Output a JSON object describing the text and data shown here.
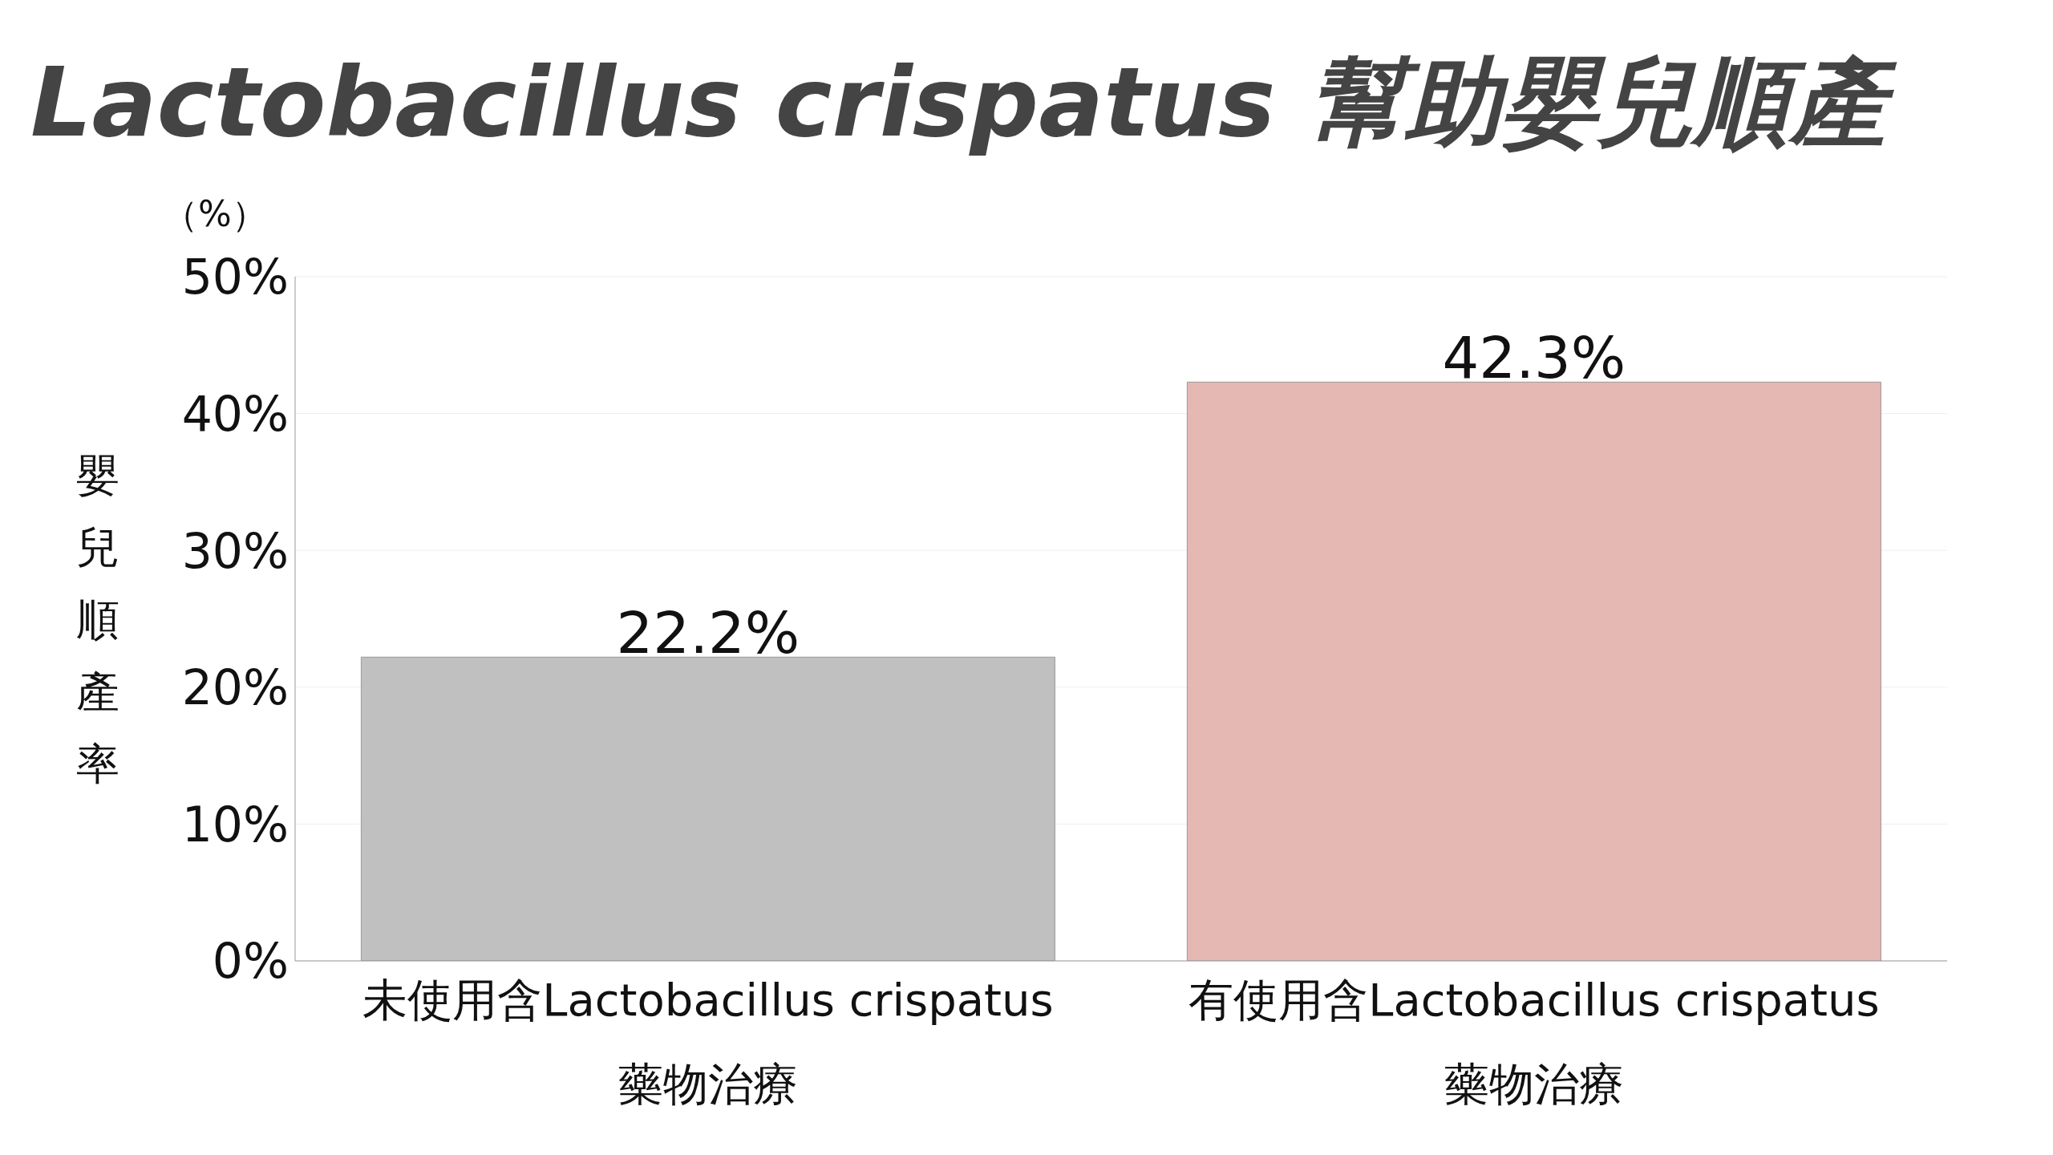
{
  "chart_data": {
    "type": "bar",
    "title": "Lactobacillus crispatus 幫助嬰兒順產",
    "ylabel": "嬰兒順產率",
    "annotations": [
      "（%）"
    ],
    "categories": [
      "未使用含Lactobacillus crispatus\n藥物治療",
      "有使用含Lactobacillus crispatus\n藥物治療"
    ],
    "values": [
      22.2,
      42.3
    ],
    "colors": [
      "#c0c0c0",
      "#e5b8b4"
    ],
    "value_labels": [
      "22.2%",
      "42.3%"
    ],
    "ylim": [
      0,
      50
    ],
    "yticks": [
      {
        "value": 0,
        "label": "0%"
      },
      {
        "value": 10,
        "label": "10%"
      },
      {
        "value": 20,
        "label": "20%"
      },
      {
        "value": 30,
        "label": "30%"
      },
      {
        "value": 40,
        "label": "40%"
      },
      {
        "value": 50,
        "label": "50%"
      }
    ],
    "grid": "y"
  }
}
